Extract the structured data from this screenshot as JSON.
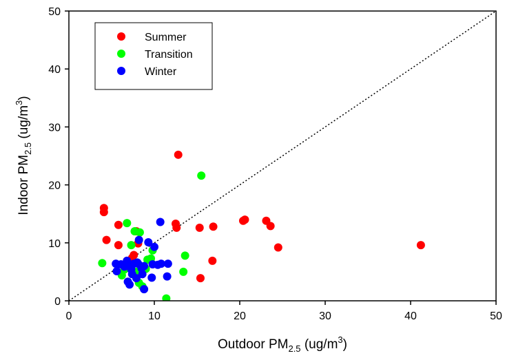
{
  "chart_data": {
    "type": "scatter",
    "title": "",
    "xlabel": {
      "main": "Outdoor PM",
      "sub": "2.5",
      "tail": " (ug/m",
      "sup": "3",
      "close": ")"
    },
    "ylabel": {
      "main": "Indoor PM",
      "sub": "2.5",
      "tail": " (ug/m",
      "sup": "3",
      "close": ")"
    },
    "xlim": [
      0,
      50
    ],
    "ylim": [
      0,
      50
    ],
    "xticks": [
      "0",
      "10",
      "20",
      "30",
      "40",
      "50"
    ],
    "yticks": [
      "0",
      "10",
      "20",
      "30",
      "40",
      "50"
    ],
    "grid": false,
    "legend_position": "top-left",
    "reference_line": "1:1 dotted",
    "series": [
      {
        "name": "Summer",
        "color": "#ff0000",
        "points": [
          [
            4.1,
            16.0
          ],
          [
            4.1,
            15.3
          ],
          [
            4.4,
            10.5
          ],
          [
            5.8,
            13.1
          ],
          [
            5.8,
            9.6
          ],
          [
            7.6,
            7.9
          ],
          [
            7.9,
            12.0
          ],
          [
            8.1,
            9.9
          ],
          [
            12.8,
            25.2
          ],
          [
            12.5,
            13.3
          ],
          [
            12.6,
            12.6
          ],
          [
            15.3,
            12.6
          ],
          [
            16.9,
            12.8
          ],
          [
            16.8,
            6.9
          ],
          [
            15.4,
            3.9
          ],
          [
            20.4,
            13.8
          ],
          [
            20.6,
            14.0
          ],
          [
            23.1,
            13.8
          ],
          [
            23.6,
            12.9
          ],
          [
            24.5,
            9.2
          ],
          [
            41.2,
            9.6
          ],
          [
            7.4,
            7.4
          ],
          [
            6.8,
            6.9
          ],
          [
            8.7,
            5.8
          ]
        ]
      },
      {
        "name": "Transition",
        "color": "#00ff00",
        "points": [
          [
            3.9,
            6.5
          ],
          [
            6.8,
            13.4
          ],
          [
            7.3,
            9.6
          ],
          [
            7.7,
            12.0
          ],
          [
            8.3,
            11.8
          ],
          [
            6.2,
            4.4
          ],
          [
            8.2,
            3.1
          ],
          [
            8.6,
            2.5
          ],
          [
            9.2,
            7.1
          ],
          [
            9.6,
            7.3
          ],
          [
            9.8,
            8.7
          ],
          [
            11.4,
            0.4
          ],
          [
            13.4,
            5.0
          ],
          [
            13.6,
            7.8
          ],
          [
            15.5,
            21.6
          ],
          [
            6.5,
            5.4
          ],
          [
            7.9,
            5.0
          ],
          [
            9.0,
            5.5
          ]
        ]
      },
      {
        "name": "Winter",
        "color": "#0000ff",
        "points": [
          [
            5.5,
            6.4
          ],
          [
            5.6,
            5.1
          ],
          [
            6.1,
            6.3
          ],
          [
            6.5,
            5.9
          ],
          [
            6.8,
            6.9
          ],
          [
            6.9,
            3.3
          ],
          [
            7.1,
            2.8
          ],
          [
            7.1,
            6.2
          ],
          [
            7.4,
            4.6
          ],
          [
            7.6,
            6.4
          ],
          [
            7.9,
            3.9
          ],
          [
            8.1,
            6.4
          ],
          [
            8.2,
            10.5
          ],
          [
            8.5,
            5.6
          ],
          [
            8.6,
            4.6
          ],
          [
            8.8,
            6.0
          ],
          [
            8.8,
            2.0
          ],
          [
            9.3,
            10.1
          ],
          [
            9.7,
            4.0
          ],
          [
            9.8,
            6.3
          ],
          [
            10.0,
            9.3
          ],
          [
            10.4,
            6.2
          ],
          [
            10.7,
            13.6
          ],
          [
            10.8,
            6.4
          ],
          [
            11.5,
            4.2
          ],
          [
            11.6,
            6.4
          ],
          [
            7.3,
            5.4
          ],
          [
            8.0,
            6.6
          ]
        ]
      }
    ]
  }
}
